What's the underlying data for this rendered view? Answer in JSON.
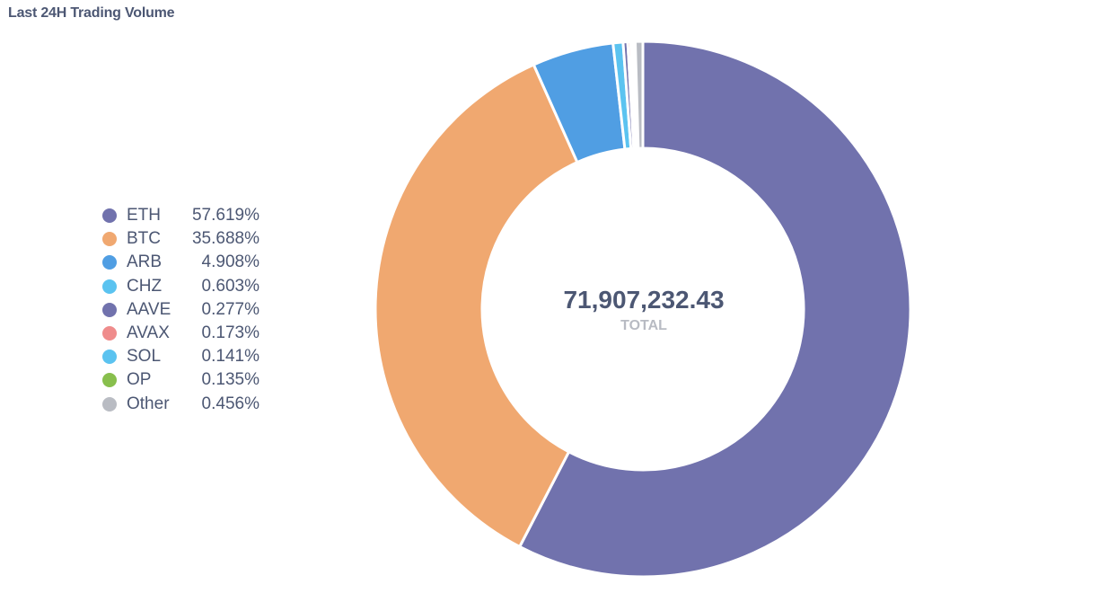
{
  "title": "Last 24H Trading Volume",
  "chart_data": {
    "type": "pie",
    "title": "Last 24H Trading Volume",
    "donut": true,
    "total_value": "71,907,232.43",
    "total_label": "TOTAL",
    "legend_position": "left",
    "slices": [
      {
        "label": "ETH",
        "value": 57.619,
        "display": "57.619%",
        "color": "#7172ad"
      },
      {
        "label": "BTC",
        "value": 35.688,
        "display": "35.688%",
        "color": "#f0a870"
      },
      {
        "label": "ARB",
        "value": 4.908,
        "display": "4.908%",
        "color": "#509ee3"
      },
      {
        "label": "CHZ",
        "value": 0.603,
        "display": "0.603%",
        "color": "#5bc3f0"
      },
      {
        "label": "AAVE",
        "value": 0.277,
        "display": "0.277%",
        "color": "#7172ad"
      },
      {
        "label": "AVAX",
        "value": 0.173,
        "display": "0.173%",
        "color": "#ef8c8c"
      },
      {
        "label": "SOL",
        "value": 0.141,
        "display": "0.141%",
        "color": "#5bc3f0"
      },
      {
        "label": "OP",
        "value": 0.135,
        "display": "0.135%",
        "color": "#88bf4d"
      },
      {
        "label": "Other",
        "value": 0.456,
        "display": "0.456%",
        "color": "#b9bcc3"
      }
    ]
  }
}
